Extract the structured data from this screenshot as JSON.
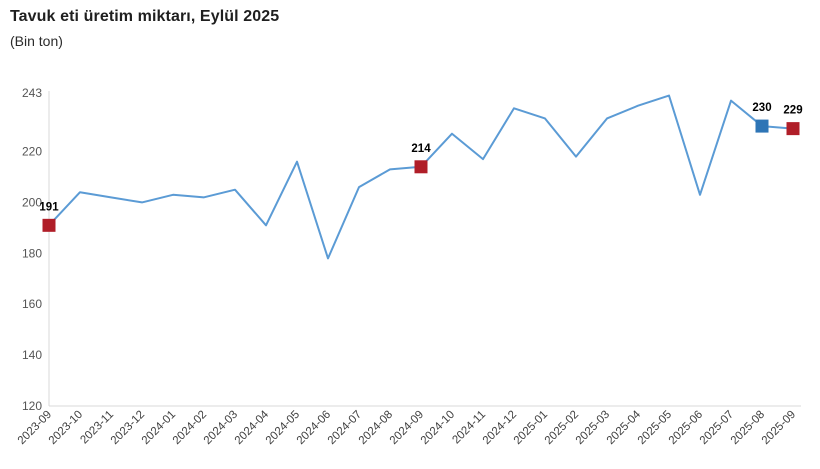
{
  "header": {
    "title": "Tavuk eti üretim miktarı, Eylül 2025",
    "subtitle": "(Bin ton)"
  },
  "chart_data": {
    "type": "line",
    "title": "Tavuk eti üretim miktarı, Eylül 2025",
    "subtitle": "(Bin ton)",
    "xlabel": "",
    "ylabel": "Bin ton",
    "categories": [
      "2023-09",
      "2023-10",
      "2023-11",
      "2023-12",
      "2024-01",
      "2024-02",
      "2024-03",
      "2024-04",
      "2024-05",
      "2024-06",
      "2024-07",
      "2024-08",
      "2024-09",
      "2024-10",
      "2024-11",
      "2024-12",
      "2025-01",
      "2025-02",
      "2025-03",
      "2025-04",
      "2025-05",
      "2025-06",
      "2025-07",
      "2025-08",
      "2025-09"
    ],
    "values": [
      191,
      204,
      202,
      200,
      203,
      202,
      205,
      191,
      216,
      178,
      206,
      213,
      214,
      227,
      217,
      237,
      233,
      218,
      233,
      238,
      242,
      203,
      240,
      230,
      229
    ],
    "ylim": [
      120,
      243
    ],
    "yticks": [
      243,
      220,
      200,
      180,
      160,
      140,
      120
    ],
    "grid": false,
    "legend": false,
    "colors": {
      "line": "#5b9bd5",
      "axis": "#d9d9d9",
      "y_tick_label": "#555555",
      "x_tick_label": "#3f3f3f",
      "data_label": "#000000",
      "marker_red": "#b01e28",
      "marker_blue": "#2e75b6"
    },
    "highlights": [
      {
        "index": 0,
        "category": "2023-09",
        "label": "191",
        "color": "#b01e28"
      },
      {
        "index": 12,
        "category": "2024-09",
        "label": "214",
        "color": "#b01e28"
      },
      {
        "index": 23,
        "category": "2025-08",
        "label": "230",
        "color": "#2e75b6"
      },
      {
        "index": 24,
        "category": "2025-09",
        "label": "229",
        "color": "#b01e28"
      }
    ]
  }
}
